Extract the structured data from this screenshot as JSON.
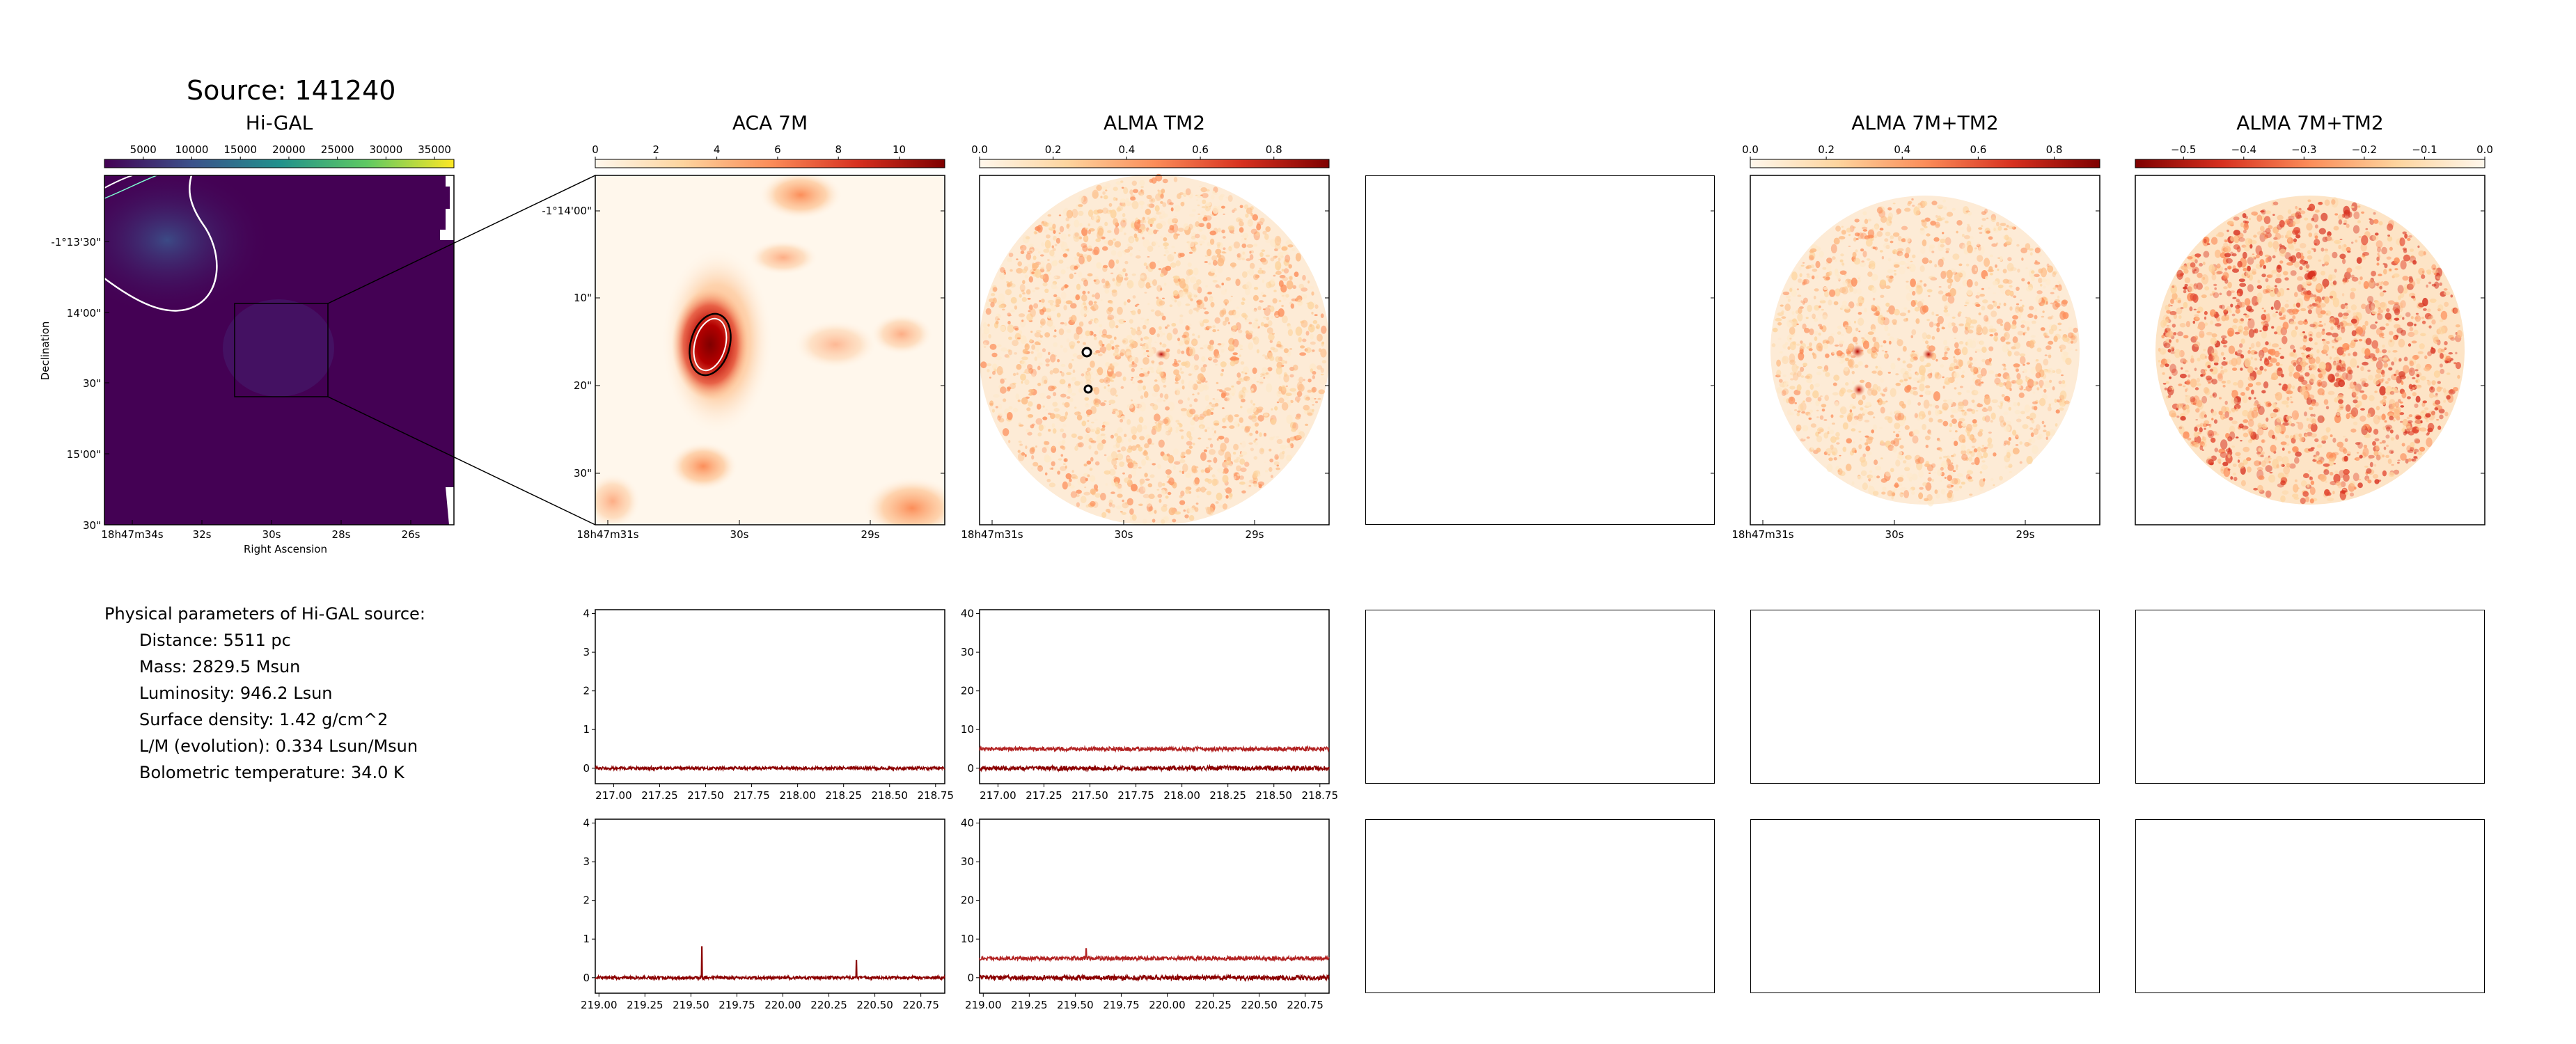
{
  "page": {
    "title": "Source: 141240",
    "params_heading": "Physical parameters of Hi-GAL source:",
    "params": [
      "Distance: 5511 pc",
      "Mass: 2829.5 Msun",
      "Luminosity: 946.2 Lsun",
      "Surface density: 1.42 g/cm^2",
      "L/M (evolution): 0.334 Lsun/Msun",
      "Bolometric temperature: 34.0 K"
    ]
  },
  "colors": {
    "viridis_start": "#440154",
    "viridis_mid": "#21918c",
    "viridis_end": "#fde725",
    "orrd_light": "#fff7ec",
    "orrd_dark": "#7f0000",
    "spectrum": "#8b0000",
    "spectrum_offset": "#b22222"
  },
  "panels": {
    "higal": {
      "title": "Hi-GAL",
      "cbar_ticks": [
        "5000",
        "10000",
        "15000",
        "20000",
        "25000",
        "30000",
        "35000"
      ],
      "cbar_range": [
        1000,
        37000
      ],
      "yticks": [
        "-1°13'30\"",
        "14'00\"",
        "30\"",
        "15'00\"",
        "30\""
      ],
      "xticks": [
        "18h47m34s",
        "32s",
        "30s",
        "28s",
        "26s"
      ],
      "xlabel": "Right Ascension",
      "ylabel": "Declination"
    },
    "aca": {
      "title": "ACA 7M",
      "cbar_ticks": [
        "0",
        "2",
        "4",
        "6",
        "8",
        "10"
      ],
      "cbar_range": [
        0,
        11.5
      ],
      "yticks": [
        "-1°14'00\"",
        "10\"",
        "20\"",
        "30\""
      ],
      "xticks": [
        "18h47m31s",
        "30s",
        "29s"
      ]
    },
    "tm2": {
      "title": "ALMA TM2",
      "cbar_ticks": [
        "0.0",
        "0.2",
        "0.4",
        "0.6",
        "0.8"
      ],
      "cbar_range": [
        0,
        0.95
      ],
      "xticks": [
        "18h47m31s",
        "30s",
        "29s"
      ]
    },
    "combined": {
      "title": "ALMA 7M+TM2",
      "cbar_ticks": [
        "0.0",
        "0.2",
        "0.4",
        "0.6",
        "0.8"
      ],
      "cbar_range": [
        0,
        0.92
      ],
      "xticks": [
        "18h47m31s",
        "30s",
        "29s"
      ]
    },
    "negative": {
      "title": "ALMA 7M+TM2",
      "cbar_ticks": [
        "−0.5",
        "−0.4",
        "−0.3",
        "−0.2",
        "−0.1",
        "0.0"
      ],
      "cbar_range": [
        -0.58,
        0
      ],
      "xticks": [
        "18h47m31s",
        "30s",
        "29s"
      ]
    }
  },
  "chart_data": [
    {
      "type": "line",
      "panel": "ACA 7M spectrum (row 1)",
      "xlim": [
        216.9,
        218.8
      ],
      "ylim": [
        -0.4,
        4.1
      ],
      "xticks": [
        "217.00",
        "217.25",
        "217.50",
        "217.75",
        "218.00",
        "218.25",
        "218.50",
        "218.75"
      ],
      "yticks": [
        "0",
        "1",
        "2",
        "3",
        "4"
      ],
      "series": [
        {
          "baseline": 0.0,
          "noise": 0.04,
          "peaks": []
        }
      ]
    },
    {
      "type": "line",
      "panel": "ALMA TM2 spectrum (row 1)",
      "xlim": [
        216.9,
        218.8
      ],
      "ylim": [
        -4,
        41
      ],
      "xticks": [
        "217.00",
        "217.25",
        "217.50",
        "217.75",
        "218.00",
        "218.25",
        "218.50",
        "218.75"
      ],
      "yticks": [
        "0",
        "10",
        "20",
        "30",
        "40"
      ],
      "series": [
        {
          "baseline": 0.0,
          "noise": 0.6,
          "peaks": []
        },
        {
          "baseline": 5.0,
          "noise": 0.5,
          "peaks": []
        }
      ]
    },
    {
      "type": "line",
      "panel": "ACA 7M spectrum (row 2)",
      "xlim": [
        218.98,
        220.88
      ],
      "ylim": [
        -0.4,
        4.1
      ],
      "xticks": [
        "219.00",
        "219.25",
        "219.50",
        "219.75",
        "220.00",
        "220.25",
        "220.50",
        "220.75"
      ],
      "yticks": [
        "0",
        "1",
        "2",
        "3",
        "4"
      ],
      "series": [
        {
          "baseline": 0.0,
          "noise": 0.04,
          "peaks": [
            {
              "x": 219.56,
              "y": 0.8
            },
            {
              "x": 220.4,
              "y": 0.45
            }
          ]
        }
      ]
    },
    {
      "type": "line",
      "panel": "ALMA TM2 spectrum (row 2)",
      "xlim": [
        218.98,
        220.88
      ],
      "ylim": [
        -4,
        41
      ],
      "xticks": [
        "219.00",
        "219.25",
        "219.50",
        "219.75",
        "220.00",
        "220.25",
        "220.50",
        "220.75"
      ],
      "yticks": [
        "0",
        "10",
        "20",
        "30",
        "40"
      ],
      "series": [
        {
          "baseline": 0.0,
          "noise": 0.6,
          "peaks": []
        },
        {
          "baseline": 5.0,
          "noise": 0.5,
          "peaks": [
            {
              "x": 219.56,
              "y": 7.5
            }
          ]
        }
      ]
    }
  ]
}
